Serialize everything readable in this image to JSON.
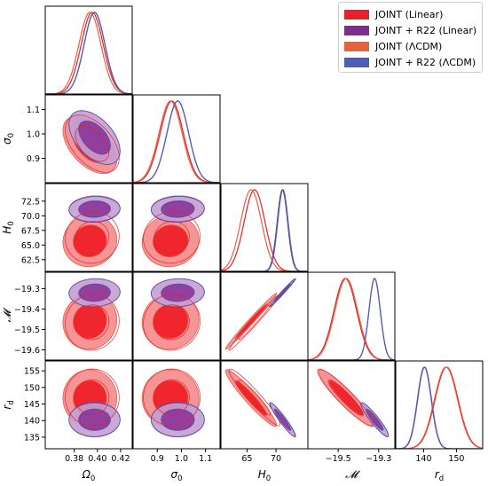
{
  "chart_data": {
    "type": "corner",
    "parameters": [
      {
        "key": "Om",
        "label": "Ω",
        "sub": "0",
        "range": [
          0.355,
          0.43
        ],
        "ticks": [
          0.38,
          0.4,
          0.42
        ],
        "tick_labels": [
          "0.38",
          "0.40",
          "0.42"
        ]
      },
      {
        "key": "s8",
        "label": "σ",
        "sub": "0",
        "range": [
          0.8,
          1.16
        ],
        "ticks": [
          0.9,
          1.0,
          1.1
        ],
        "tick_labels": [
          "0.9",
          "1.0",
          "1.1"
        ]
      },
      {
        "key": "H0",
        "label": "H",
        "sub": "0",
        "range": [
          60.5,
          75.5
        ],
        "ticks": [
          62.5,
          65.0,
          67.5,
          70.0,
          72.5
        ],
        "tick_labels": [
          "62.5",
          "65.0",
          "67.5",
          "70.0",
          "72.5"
        ]
      },
      {
        "key": "M",
        "label": "𝓜",
        "sub": "",
        "range": [
          -19.65,
          -19.22
        ],
        "ticks": [
          -19.6,
          -19.5,
          -19.4,
          -19.3
        ],
        "tick_labels": [
          "−19.6",
          "−19.5",
          "−19.4",
          "−19.3"
        ]
      },
      {
        "key": "rd",
        "label": "r",
        "sub": "d",
        "range": [
          131.5,
          158
        ],
        "ticks": [
          135,
          140,
          145,
          150,
          155
        ],
        "tick_labels": [
          "135",
          "140",
          "145",
          "150",
          "155"
        ]
      }
    ],
    "bottom_ticks": [
      {
        "ticks": [
          0.38,
          0.4,
          0.42
        ],
        "tick_labels": [
          "0.38",
          "0.40",
          "0.42"
        ]
      },
      {
        "ticks": [
          0.9,
          1.0,
          1.1
        ],
        "tick_labels": [
          "0.9",
          "1.0",
          "1.1"
        ]
      },
      {
        "ticks": [
          65,
          70
        ],
        "tick_labels": [
          "65",
          "70"
        ]
      },
      {
        "ticks": [
          -19.5,
          -19.3
        ],
        "tick_labels": [
          "−19.5",
          "−19.3"
        ]
      },
      {
        "ticks": [
          140,
          150
        ],
        "tick_labels": [
          "140",
          "150"
        ]
      }
    ],
    "series": [
      {
        "name": "JOINT (Linear)",
        "color": "#e8202a",
        "fill_inner": "#ee2028",
        "fill_outer": "#f48a8c",
        "filled": false,
        "mean": [
          0.3955,
          0.96,
          66.3,
          -19.465,
          147.0
        ],
        "sd": [
          0.0095,
          0.048,
          1.8,
          0.056,
          3.5
        ],
        "corr": {
          "0-1": -0.5,
          "0-2": 0.05,
          "0-3": 0.05,
          "0-4": 0.0,
          "1-2": 0.05,
          "1-3": 0.05,
          "1-4": 0.0,
          "2-3": 0.99,
          "2-4": -0.95,
          "3-4": -0.93
        }
      },
      {
        "name": "JOINT + R22 (Linear)",
        "color": "#7d2d8e",
        "fill_inner": "#8e3a9a",
        "fill_outer": "#c59ed0",
        "filled": true,
        "mean": [
          0.3975,
          0.985,
          71.1,
          -19.32,
          140.3
        ],
        "sd": [
          0.009,
          0.045,
          0.9,
          0.028,
          2.1
        ],
        "corr": {
          "0-1": -0.5,
          "0-2": 0.05,
          "0-3": 0.05,
          "0-4": 0.0,
          "1-2": 0.05,
          "1-3": 0.05,
          "1-4": 0.0,
          "2-3": 0.99,
          "2-4": -0.95,
          "3-4": -0.93
        }
      },
      {
        "name": "JOINT (ΛCDM)",
        "color": "#e8613f",
        "fill_inner": "#ee2028",
        "fill_outer": "#f48a8c",
        "filled": true,
        "mean": [
          0.3935,
          0.955,
          65.7,
          -19.46,
          146.8
        ],
        "sd": [
          0.0095,
          0.048,
          1.8,
          0.056,
          3.5
        ],
        "corr": {
          "0-1": -0.5,
          "0-2": 0.05,
          "0-3": 0.05,
          "0-4": 0.0,
          "1-2": 0.05,
          "1-3": 0.05,
          "1-4": 0.0,
          "2-3": 0.99,
          "2-4": -0.95,
          "3-4": -0.93
        }
      },
      {
        "name": "JOINT + R22 (ΛCDM)",
        "color": "#4d5fb5",
        "fill_inner": "#4d5fb5",
        "fill_outer": "#9aa5d8",
        "filled": false,
        "mean": [
          0.3975,
          0.985,
          71.2,
          -19.32,
          140.2
        ],
        "sd": [
          0.009,
          0.045,
          0.9,
          0.028,
          2.1
        ],
        "corr": {
          "0-1": -0.5,
          "0-2": 0.05,
          "0-3": 0.05,
          "0-4": 0.0,
          "1-2": 0.05,
          "1-3": 0.05,
          "1-4": 0.0,
          "2-3": 0.99,
          "2-4": -0.95,
          "3-4": -0.93
        }
      }
    ],
    "legend_position": "top-right",
    "grid": false
  },
  "legend": {
    "items": [
      {
        "label": "JOINT (Linear)",
        "color": "#e8202a"
      },
      {
        "label": "JOINT + R22 (Linear)",
        "color": "#7d2d8e"
      },
      {
        "label": "JOINT (ΛCDM)",
        "color": "#e8613f"
      },
      {
        "label": "JOINT + R22 (ΛCDM)",
        "color": "#4d5fb5"
      }
    ]
  }
}
